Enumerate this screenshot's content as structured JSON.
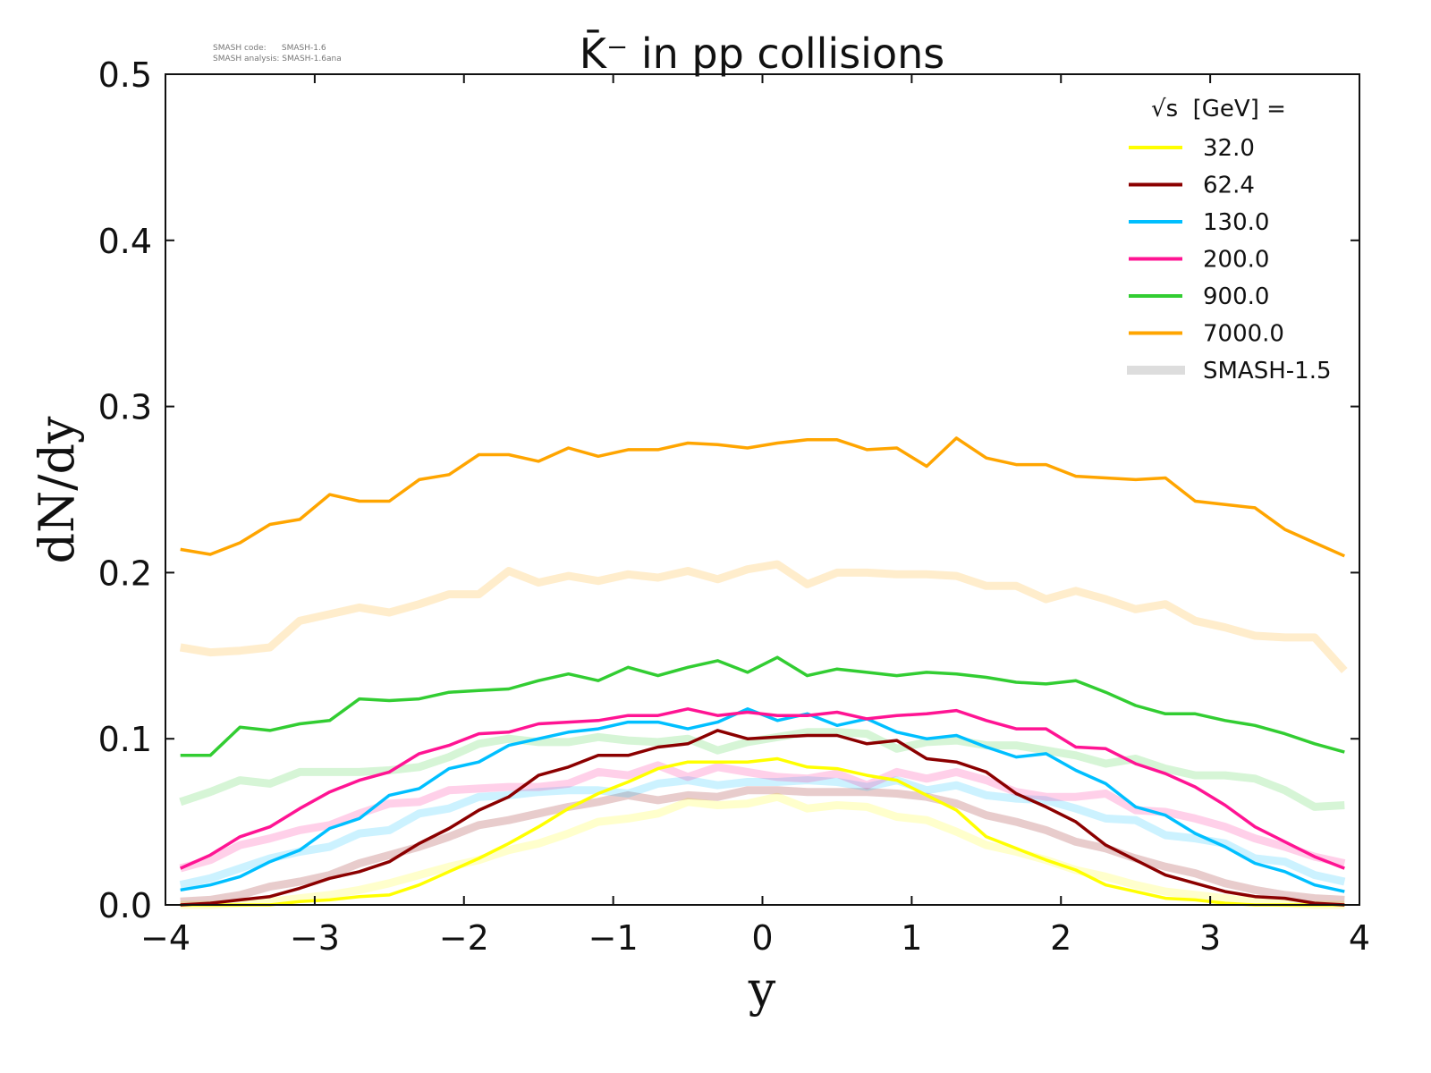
{
  "chart_data": {
    "type": "line",
    "title": "K̄⁻ in pp collisions",
    "xlabel": "y",
    "ylabel": "dN/dy",
    "xlim": [
      -4,
      4
    ],
    "ylim": [
      0,
      0.5
    ],
    "xticks": [
      "−4",
      "−3",
      "−2",
      "−1",
      "0",
      "1",
      "2",
      "3",
      "4"
    ],
    "yticks": [
      "0.0",
      "0.1",
      "0.2",
      "0.3",
      "0.4",
      "0.5"
    ],
    "meta": [
      "SMASH code:      SMASH-1.6",
      "SMASH analysis: SMASH-1.6ana"
    ],
    "legend": {
      "title": "√s  [GeV] =",
      "placement": "top-right",
      "reference_label": "SMASH-1.5",
      "reference_color": "#dddddd"
    },
    "x": [
      -3.9,
      -3.7,
      -3.5,
      -3.3,
      -3.1,
      -2.9,
      -2.7,
      -2.5,
      -2.3,
      -2.1,
      -1.9,
      -1.7,
      -1.5,
      -1.3,
      -1.1,
      -0.9,
      -0.7,
      -0.5,
      -0.3,
      -0.1,
      0.1,
      0.3,
      0.5,
      0.7,
      0.9,
      1.1,
      1.3,
      1.5,
      1.7,
      1.9,
      2.1,
      2.3,
      2.5,
      2.7,
      2.9,
      3.1,
      3.3,
      3.5,
      3.7,
      3.9
    ],
    "series": [
      {
        "name": "32.0",
        "color": "#ffff00",
        "values": [
          0,
          0,
          0,
          0,
          0.002,
          0.003,
          0.005,
          0.006,
          0.012,
          0.02,
          0.028,
          0.037,
          0.047,
          0.058,
          0.067,
          0.074,
          0.082,
          0.086,
          0.086,
          0.086,
          0.088,
          0.083,
          0.082,
          0.078,
          0.075,
          0.066,
          0.057,
          0.041,
          0.034,
          0.027,
          0.021,
          0.012,
          0.008,
          0.004,
          0.003,
          0.001,
          0,
          0,
          0,
          0
        ],
        "reference": [
          0,
          0,
          0.001,
          0.002,
          0.004,
          0.006,
          0.009,
          0.013,
          0.018,
          0.023,
          0.027,
          0.033,
          0.037,
          0.043,
          0.05,
          0.052,
          0.055,
          0.062,
          0.06,
          0.061,
          0.065,
          0.058,
          0.06,
          0.059,
          0.053,
          0.051,
          0.044,
          0.036,
          0.032,
          0.027,
          0.021,
          0.017,
          0.012,
          0.008,
          0.006,
          0.004,
          0.002,
          0.001,
          0,
          0
        ]
      },
      {
        "name": "62.4",
        "color": "#8b0000",
        "values": [
          0,
          0.001,
          0.003,
          0.005,
          0.01,
          0.016,
          0.02,
          0.026,
          0.037,
          0.046,
          0.057,
          0.065,
          0.078,
          0.083,
          0.09,
          0.09,
          0.095,
          0.097,
          0.105,
          0.1,
          0.101,
          0.102,
          0.102,
          0.097,
          0.099,
          0.088,
          0.086,
          0.08,
          0.067,
          0.059,
          0.05,
          0.036,
          0.027,
          0.018,
          0.013,
          0.008,
          0.005,
          0.004,
          0.001,
          0
        ],
        "reference": [
          0.002,
          0.003,
          0.006,
          0.011,
          0.014,
          0.018,
          0.025,
          0.03,
          0.035,
          0.041,
          0.048,
          0.051,
          0.055,
          0.059,
          0.062,
          0.066,
          0.063,
          0.066,
          0.065,
          0.069,
          0.069,
          0.068,
          0.068,
          0.068,
          0.067,
          0.065,
          0.061,
          0.054,
          0.05,
          0.045,
          0.038,
          0.034,
          0.028,
          0.023,
          0.019,
          0.013,
          0.009,
          0.006,
          0.004,
          0.003
        ]
      },
      {
        "name": "130.0",
        "color": "#00bfff",
        "values": [
          0.009,
          0.012,
          0.017,
          0.026,
          0.033,
          0.046,
          0.052,
          0.066,
          0.07,
          0.082,
          0.086,
          0.096,
          0.1,
          0.104,
          0.106,
          0.11,
          0.11,
          0.106,
          0.11,
          0.118,
          0.111,
          0.115,
          0.108,
          0.112,
          0.104,
          0.1,
          0.102,
          0.095,
          0.089,
          0.091,
          0.081,
          0.073,
          0.059,
          0.054,
          0.043,
          0.035,
          0.025,
          0.02,
          0.012,
          0.008
        ],
        "reference": [
          0.012,
          0.016,
          0.022,
          0.028,
          0.032,
          0.035,
          0.043,
          0.045,
          0.055,
          0.058,
          0.065,
          0.066,
          0.068,
          0.069,
          0.069,
          0.067,
          0.073,
          0.075,
          0.072,
          0.074,
          0.074,
          0.075,
          0.074,
          0.071,
          0.075,
          0.069,
          0.072,
          0.066,
          0.064,
          0.063,
          0.058,
          0.052,
          0.051,
          0.042,
          0.04,
          0.037,
          0.028,
          0.026,
          0.018,
          0.014
        ]
      },
      {
        "name": "200.0",
        "color": "#ff1493",
        "values": [
          0.022,
          0.03,
          0.041,
          0.047,
          0.058,
          0.068,
          0.075,
          0.08,
          0.091,
          0.096,
          0.103,
          0.104,
          0.109,
          0.11,
          0.111,
          0.114,
          0.114,
          0.118,
          0.114,
          0.116,
          0.114,
          0.114,
          0.116,
          0.112,
          0.114,
          0.115,
          0.117,
          0.111,
          0.106,
          0.106,
          0.095,
          0.094,
          0.085,
          0.079,
          0.071,
          0.06,
          0.047,
          0.038,
          0.029,
          0.022
        ],
        "reference": [
          0.022,
          0.027,
          0.036,
          0.04,
          0.045,
          0.048,
          0.055,
          0.061,
          0.062,
          0.069,
          0.07,
          0.071,
          0.071,
          0.073,
          0.08,
          0.078,
          0.084,
          0.077,
          0.083,
          0.08,
          0.077,
          0.076,
          0.079,
          0.072,
          0.08,
          0.076,
          0.08,
          0.075,
          0.068,
          0.065,
          0.065,
          0.067,
          0.057,
          0.056,
          0.052,
          0.047,
          0.04,
          0.035,
          0.029,
          0.025
        ]
      },
      {
        "name": "900.0",
        "color": "#32cd32",
        "values": [
          0.09,
          0.09,
          0.107,
          0.105,
          0.109,
          0.111,
          0.124,
          0.123,
          0.124,
          0.128,
          0.129,
          0.13,
          0.135,
          0.139,
          0.135,
          0.143,
          0.138,
          0.143,
          0.147,
          0.14,
          0.149,
          0.138,
          0.142,
          0.14,
          0.138,
          0.14,
          0.139,
          0.137,
          0.134,
          0.133,
          0.135,
          0.128,
          0.12,
          0.115,
          0.115,
          0.111,
          0.108,
          0.103,
          0.097,
          0.092
        ],
        "reference": [
          0.062,
          0.068,
          0.075,
          0.073,
          0.08,
          0.08,
          0.08,
          0.081,
          0.083,
          0.089,
          0.097,
          0.1,
          0.098,
          0.098,
          0.101,
          0.099,
          0.098,
          0.1,
          0.093,
          0.098,
          0.101,
          0.104,
          0.104,
          0.103,
          0.094,
          0.098,
          0.099,
          0.096,
          0.096,
          0.093,
          0.09,
          0.085,
          0.088,
          0.082,
          0.078,
          0.078,
          0.076,
          0.069,
          0.059,
          0.06
        ]
      },
      {
        "name": "7000.0",
        "color": "#ffa500",
        "values": [
          0.214,
          0.211,
          0.218,
          0.229,
          0.232,
          0.247,
          0.243,
          0.243,
          0.256,
          0.259,
          0.271,
          0.271,
          0.267,
          0.275,
          0.27,
          0.274,
          0.274,
          0.278,
          0.277,
          0.275,
          0.278,
          0.28,
          0.28,
          0.274,
          0.275,
          0.264,
          0.281,
          0.269,
          0.265,
          0.265,
          0.258,
          0.257,
          0.256,
          0.257,
          0.243,
          0.241,
          0.239,
          0.226,
          0.218,
          0.21
        ],
        "reference": [
          0.155,
          0.152,
          0.153,
          0.155,
          0.171,
          0.175,
          0.179,
          0.176,
          0.181,
          0.187,
          0.187,
          0.201,
          0.194,
          0.198,
          0.195,
          0.199,
          0.197,
          0.201,
          0.196,
          0.202,
          0.205,
          0.193,
          0.2,
          0.2,
          0.199,
          0.199,
          0.198,
          0.192,
          0.192,
          0.184,
          0.189,
          0.184,
          0.178,
          0.181,
          0.171,
          0.167,
          0.162,
          0.161,
          0.161,
          0.141
        ]
      }
    ]
  }
}
